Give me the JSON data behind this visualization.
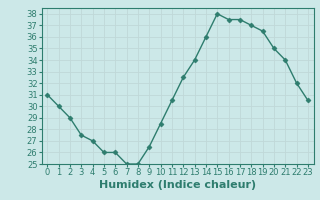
{
  "x": [
    0,
    1,
    2,
    3,
    4,
    5,
    6,
    7,
    8,
    9,
    10,
    11,
    12,
    13,
    14,
    15,
    16,
    17,
    18,
    19,
    20,
    21,
    22,
    23
  ],
  "y": [
    31,
    30,
    29,
    27.5,
    27,
    26,
    26,
    25,
    25,
    26.5,
    28.5,
    30.5,
    32.5,
    34,
    36,
    38,
    37.5,
    37.5,
    37,
    36.5,
    35,
    34,
    32,
    30.5
  ],
  "line_color": "#2e7d6e",
  "marker": "D",
  "marker_size": 2.5,
  "bg_color": "#cce8e8",
  "grid_color": "#b0d0d0",
  "xlabel": "Humidex (Indice chaleur)",
  "xlim": [
    -0.5,
    23.5
  ],
  "ylim": [
    25,
    38.5
  ],
  "yticks": [
    25,
    26,
    27,
    28,
    29,
    30,
    31,
    32,
    33,
    34,
    35,
    36,
    37,
    38
  ],
  "xticks": [
    0,
    1,
    2,
    3,
    4,
    5,
    6,
    7,
    8,
    9,
    10,
    11,
    12,
    13,
    14,
    15,
    16,
    17,
    18,
    19,
    20,
    21,
    22,
    23
  ],
  "tick_fontsize": 6,
  "label_fontsize": 8
}
